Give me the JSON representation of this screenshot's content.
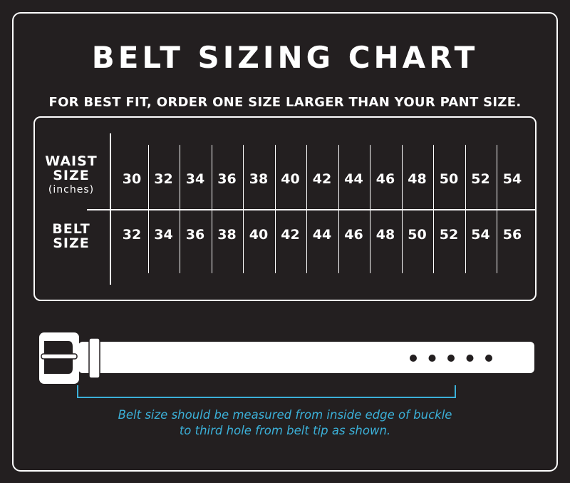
{
  "title": "BELT SIZING CHART",
  "subtitle": "FOR BEST FIT, ORDER ONE SIZE LARGER THAN YOUR PANT SIZE.",
  "table": {
    "waist_label_line1": "WAIST",
    "waist_label_line2": "SIZE",
    "waist_label_unit": "(inches)",
    "belt_label_line1": "BELT",
    "belt_label_line2": "SIZE",
    "waist_sizes": [
      "30",
      "32",
      "34",
      "36",
      "38",
      "40",
      "42",
      "44",
      "46",
      "48",
      "50",
      "52",
      "54"
    ],
    "belt_sizes": [
      "32",
      "34",
      "36",
      "38",
      "40",
      "42",
      "44",
      "46",
      "48",
      "50",
      "52",
      "54",
      "56"
    ]
  },
  "illustration": {
    "icon": "belt-icon",
    "hole_count": 5,
    "measure_to_hole": 3
  },
  "note": {
    "line1": "Belt size should be measured from inside edge of buckle",
    "line2": "to third hole from belt tip as shown."
  },
  "colors": {
    "background": "#231f20",
    "foreground": "#ffffff",
    "accent": "#3bb0d8"
  }
}
